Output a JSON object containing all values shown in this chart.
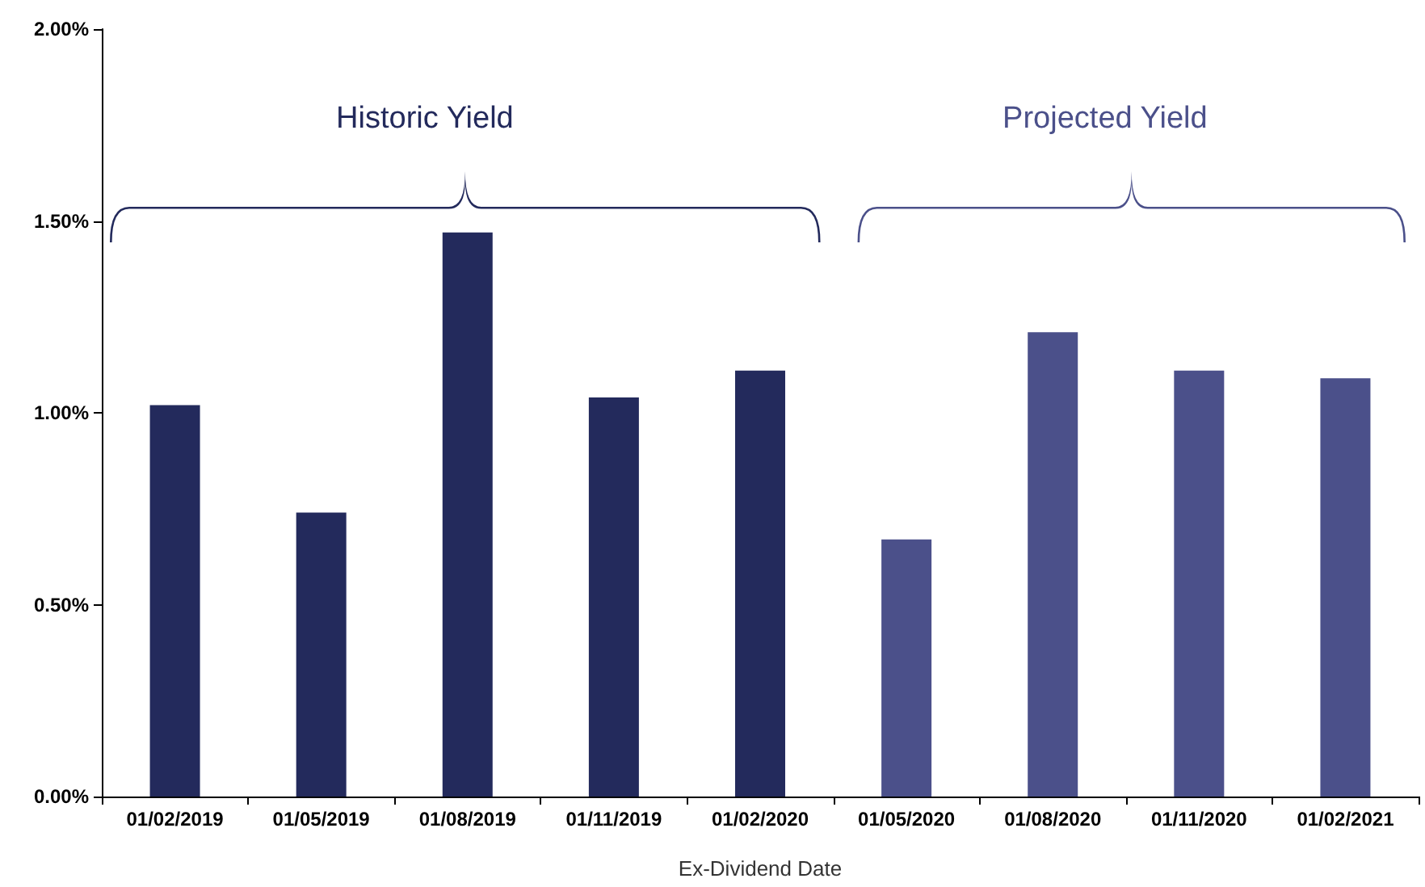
{
  "chart_data": {
    "type": "bar",
    "xlabel": "Ex-Dividend Date",
    "categories": [
      "01/02/2019",
      "01/05/2019",
      "01/08/2019",
      "01/11/2019",
      "01/02/2020",
      "01/05/2020",
      "01/08/2020",
      "01/11/2020",
      "01/02/2021"
    ],
    "series": [
      {
        "color": "#232a5c",
        "values": [
          1.02,
          0.74,
          1.47,
          1.04,
          1.11,
          null,
          null,
          null,
          null
        ]
      },
      {
        "color": "#4b508a",
        "values": [
          null,
          null,
          null,
          null,
          null,
          0.67,
          1.21,
          1.11,
          1.09
        ]
      }
    ],
    "ylim": [
      0,
      2
    ],
    "yticks": [
      {
        "value": 0,
        "label": "0.00%"
      },
      {
        "value": 0.5,
        "label": "0.50%"
      },
      {
        "value": 1,
        "label": "1.00%"
      },
      {
        "value": 1.5,
        "label": "1.50%"
      },
      {
        "value": 2,
        "label": "2.00%"
      }
    ],
    "annotations": [
      "Historic Yield",
      "Projected Yield"
    ],
    "grid": false
  }
}
